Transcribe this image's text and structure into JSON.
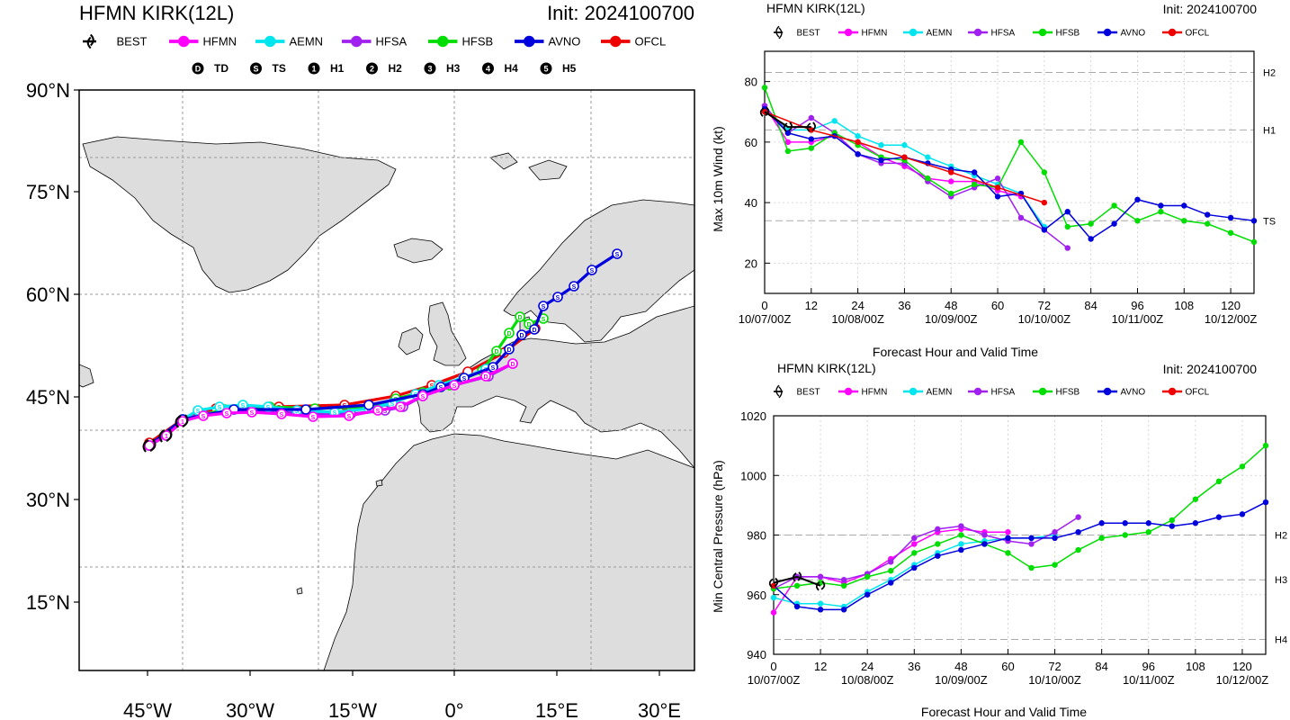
{
  "model_colors": {
    "BEST": "#000000",
    "HFMN": "#ff00ff",
    "AEMN": "#00e5ee",
    "HFSA": "#a020f0",
    "HFSB": "#00dd00",
    "AVNO": "#0000dd",
    "OFCL": "#ee0000"
  },
  "legend_models": [
    "BEST",
    "HFMN",
    "AEMN",
    "HFSA",
    "HFSB",
    "AVNO",
    "OFCL"
  ],
  "map": {
    "title": "HFMN KIRK(12L)",
    "init": "Init: 2024100700",
    "intensity_keys": [
      {
        "symbol": "D",
        "label": "TD"
      },
      {
        "symbol": "S",
        "label": "TS"
      },
      {
        "symbol": "1",
        "label": "H1"
      },
      {
        "symbol": "2",
        "label": "H2"
      },
      {
        "symbol": "3",
        "label": "H3"
      },
      {
        "symbol": "4",
        "label": "H4"
      },
      {
        "symbol": "5",
        "label": "H5"
      }
    ],
    "lat_labels": [
      "90°N",
      "75°N",
      "60°N",
      "45°N",
      "30°N",
      "15°N"
    ],
    "lon_labels": [
      "45°W",
      "30°W",
      "15°W",
      "0°",
      "15°E",
      "30°E"
    ]
  },
  "chart_data": [
    {
      "type": "line",
      "title": "HFMN KIRK(12L)",
      "subtitle": "Init: 2024100700",
      "xlabel": "Forecast Hour and Valid Time",
      "ylabel": "Max 10m Wind (kt)",
      "xlim": [
        0,
        126
      ],
      "ylim": [
        10,
        90
      ],
      "xticks": [
        0,
        12,
        24,
        36,
        48,
        60,
        72,
        84,
        96,
        108,
        120
      ],
      "yticks": [
        20,
        40,
        60,
        80
      ],
      "date_ticks": [
        {
          "x": 0,
          "label": "10/07/00Z"
        },
        {
          "x": 24,
          "label": "10/08/00Z"
        },
        {
          "x": 48,
          "label": "10/09/00Z"
        },
        {
          "x": 72,
          "label": "10/10/00Z"
        },
        {
          "x": 96,
          "label": "10/11/00Z"
        },
        {
          "x": 120,
          "label": "10/12/00Z"
        }
      ],
      "category_lines": [
        {
          "label": "H2",
          "value": 83
        },
        {
          "label": "H1",
          "value": 64
        },
        {
          "label": "TS",
          "value": 34
        }
      ],
      "series": [
        {
          "name": "BEST",
          "x": [
            0,
            6,
            12
          ],
          "y": [
            70,
            65,
            65
          ]
        },
        {
          "name": "HFMN",
          "x": [
            0,
            6,
            12,
            18,
            24,
            30,
            36,
            42,
            48,
            54,
            60,
            66
          ],
          "y": [
            72,
            60,
            60,
            62,
            60,
            55,
            52,
            48,
            47,
            47,
            44,
            42
          ]
        },
        {
          "name": "AEMN",
          "x": [
            0,
            6,
            12,
            18,
            24,
            30,
            36,
            42,
            48,
            54,
            60,
            66,
            72
          ],
          "y": [
            71,
            64,
            64,
            67,
            62,
            59,
            59,
            55,
            52,
            49,
            46,
            43,
            32
          ]
        },
        {
          "name": "HFSA",
          "x": [
            0,
            6,
            12,
            18,
            24,
            30,
            36,
            42,
            48,
            54,
            60,
            66,
            72,
            78
          ],
          "y": [
            72,
            63,
            68,
            63,
            56,
            53,
            53,
            47,
            42,
            45,
            48,
            35,
            31,
            25
          ]
        },
        {
          "name": "HFSB",
          "x": [
            0,
            6,
            12,
            18,
            24,
            30,
            36,
            42,
            48,
            54,
            60,
            66,
            72,
            78,
            84,
            90,
            96,
            102,
            108,
            114,
            120,
            126
          ],
          "y": [
            78,
            57,
            58,
            63,
            59,
            55,
            54,
            48,
            43,
            46,
            45,
            60,
            50,
            32,
            33,
            39,
            34,
            37,
            34,
            33,
            30,
            27
          ]
        },
        {
          "name": "AVNO",
          "x": [
            0,
            6,
            12,
            18,
            24,
            30,
            36,
            42,
            48,
            54,
            60,
            66,
            72,
            78,
            84,
            90,
            96,
            102,
            108,
            114,
            120,
            126
          ],
          "y": [
            71,
            63,
            61,
            62,
            56,
            54,
            55,
            53,
            51,
            50,
            42,
            43,
            31,
            37,
            28,
            33,
            41,
            39,
            39,
            36,
            35,
            34
          ]
        },
        {
          "name": "OFCL",
          "x": [
            0,
            12,
            24,
            36,
            48,
            60,
            72
          ],
          "y": [
            70,
            64,
            60,
            55,
            50,
            45,
            40
          ]
        }
      ]
    },
    {
      "type": "line",
      "title": "HFMN KIRK(12L)",
      "subtitle": "Init: 2024100700",
      "xlabel": "Forecast Hour and Valid Time",
      "ylabel": "Min Central Pressure (hPa)",
      "xlim": [
        0,
        126
      ],
      "ylim": [
        940,
        1020
      ],
      "xticks": [
        0,
        12,
        24,
        36,
        48,
        60,
        72,
        84,
        96,
        108,
        120
      ],
      "yticks": [
        940,
        960,
        980,
        1000,
        1020
      ],
      "date_ticks": [
        {
          "x": 0,
          "label": "10/07/00Z"
        },
        {
          "x": 24,
          "label": "10/08/00Z"
        },
        {
          "x": 48,
          "label": "10/09/00Z"
        },
        {
          "x": 72,
          "label": "10/10/00Z"
        },
        {
          "x": 96,
          "label": "10/11/00Z"
        },
        {
          "x": 120,
          "label": "10/12/00Z"
        }
      ],
      "category_lines": [
        {
          "label": "H2",
          "value": 980
        },
        {
          "label": "H3",
          "value": 965
        },
        {
          "label": "H4",
          "value": 945
        }
      ],
      "series": [
        {
          "name": "BEST",
          "x": [
            0,
            6,
            12
          ],
          "y": [
            964,
            966,
            963
          ]
        },
        {
          "name": "HFMN",
          "x": [
            0,
            6,
            12,
            18,
            24,
            30,
            36,
            42,
            48,
            54,
            60
          ],
          "y": [
            954,
            966,
            966,
            964,
            967,
            972,
            977,
            981,
            982,
            981,
            981
          ]
        },
        {
          "name": "AEMN",
          "x": [
            0,
            6,
            12,
            18,
            24,
            30,
            36,
            42,
            48,
            54,
            60,
            66,
            72
          ],
          "y": [
            959,
            957,
            957,
            956,
            961,
            965,
            970,
            974,
            977,
            978,
            979,
            979,
            980
          ]
        },
        {
          "name": "HFSA",
          "x": [
            0,
            6,
            12,
            18,
            24,
            30,
            36,
            42,
            48,
            54,
            60,
            66,
            72,
            78
          ],
          "y": [
            962,
            966,
            966,
            965,
            967,
            971,
            979,
            982,
            983,
            980,
            978,
            977,
            981,
            986
          ]
        },
        {
          "name": "HFSB",
          "x": [
            0,
            6,
            12,
            18,
            24,
            30,
            36,
            42,
            48,
            54,
            60,
            66,
            72,
            78,
            84,
            90,
            96,
            102,
            108,
            114,
            120,
            126
          ],
          "y": [
            962,
            963,
            964,
            963,
            966,
            968,
            974,
            977,
            980,
            977,
            974,
            969,
            970,
            975,
            979,
            980,
            981,
            985,
            992,
            998,
            1003,
            1010
          ]
        },
        {
          "name": "AVNO",
          "x": [
            0,
            6,
            12,
            18,
            24,
            30,
            36,
            42,
            48,
            54,
            60,
            66,
            72,
            78,
            84,
            90,
            96,
            102,
            108,
            114,
            120,
            126
          ],
          "y": [
            963,
            956,
            955,
            955,
            960,
            964,
            969,
            973,
            975,
            977,
            979,
            979,
            979,
            981,
            984,
            984,
            984,
            983,
            984,
            986,
            987,
            991
          ]
        },
        {
          "name": "OFCL",
          "x": [
            0
          ],
          "y": [
            963
          ]
        }
      ]
    }
  ]
}
